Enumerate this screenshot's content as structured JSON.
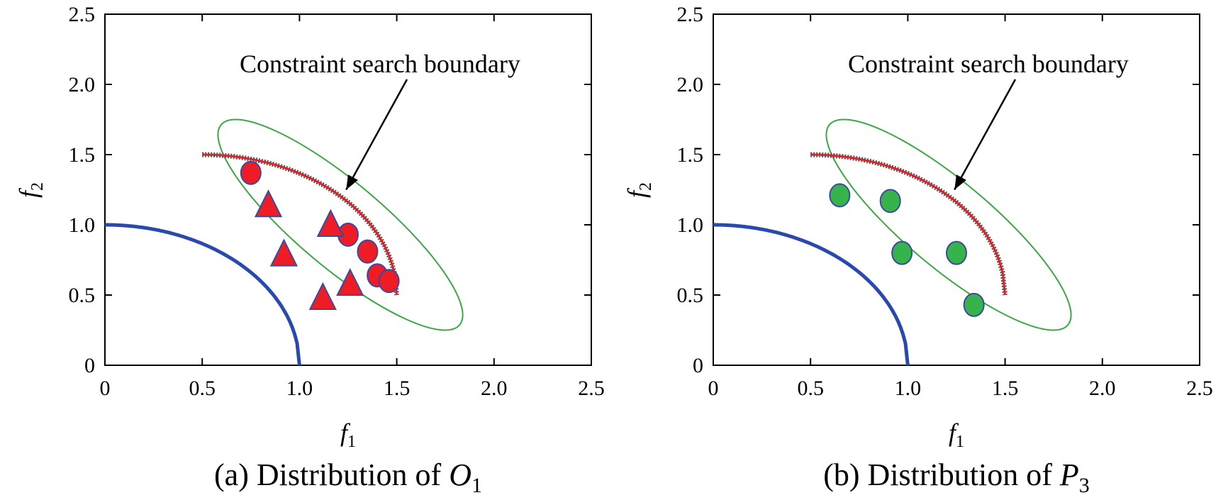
{
  "colors": {
    "true_front": "#2a49ae",
    "shifted_front": "#d9232a",
    "ellipse": "#3aa843",
    "o1_marker": "#ee1c25",
    "p3_marker": "#36b34a",
    "marker_edge": "#3a4aa0"
  },
  "chart_data": [
    {
      "type": "scatter",
      "caption": {
        "prefix": "(a) Distribution of ",
        "symbol": "O",
        "subscript": "1"
      },
      "xlabel": {
        "symbol": "f",
        "subscript": "1"
      },
      "ylabel": {
        "symbol": "f",
        "subscript": "2"
      },
      "xlim": [
        0,
        2.5
      ],
      "ylim": [
        0,
        2.5
      ],
      "xticks": [
        "0",
        "0.5",
        "1.0",
        "1.5",
        "2.0",
        "2.5"
      ],
      "yticks": [
        "0",
        "0.5",
        "1.0",
        "1.5",
        "2.0",
        "2.5"
      ],
      "annotation": {
        "text": "Constraint search boundary",
        "arrow_to": [
          1.24,
          1.25
        ]
      },
      "ellipse": {
        "center": [
          1.21,
          1.0
        ],
        "semi_axes": [
          0.8,
          0.22
        ],
        "angle_deg": -40
      },
      "series": [
        {
          "kind": "curve",
          "shape": "quarter-circle",
          "center": [
            0,
            0
          ],
          "radius": 1.0,
          "x_range": [
            0,
            1.0
          ]
        },
        {
          "kind": "curve",
          "shape": "shifted-front",
          "x_range": [
            0.5,
            1.5
          ],
          "y_range": [
            1.5,
            0.5
          ]
        },
        {
          "kind": "points",
          "marker": "circle",
          "x": [
            0.75,
            1.25,
            1.35,
            1.4,
            1.46
          ],
          "y": [
            1.37,
            0.93,
            0.81,
            0.64,
            0.6
          ]
        },
        {
          "kind": "points",
          "marker": "triangle",
          "x": [
            0.84,
            1.16,
            0.92,
            1.26,
            1.12
          ],
          "y": [
            1.14,
            1.0,
            0.79,
            0.58,
            0.48
          ]
        }
      ]
    },
    {
      "type": "scatter",
      "caption": {
        "prefix": "(b) Distribution of ",
        "symbol": "P",
        "subscript": "3"
      },
      "xlabel": {
        "symbol": "f",
        "subscript": "1"
      },
      "ylabel": {
        "symbol": "f",
        "subscript": "2"
      },
      "xlim": [
        0,
        2.5
      ],
      "ylim": [
        0,
        2.5
      ],
      "xticks": [
        "0",
        "0.5",
        "1.0",
        "1.5",
        "2.0",
        "2.5"
      ],
      "yticks": [
        "0",
        "0.5",
        "1.0",
        "1.5",
        "2.0",
        "2.5"
      ],
      "annotation": {
        "text": "Constraint search boundary",
        "arrow_to": [
          1.24,
          1.25
        ]
      },
      "ellipse": {
        "center": [
          1.21,
          1.0
        ],
        "semi_axes": [
          0.8,
          0.22
        ],
        "angle_deg": -40
      },
      "series": [
        {
          "kind": "curve",
          "shape": "quarter-circle",
          "center": [
            0,
            0
          ],
          "radius": 1.0,
          "x_range": [
            0,
            1.0
          ]
        },
        {
          "kind": "curve",
          "shape": "shifted-front",
          "x_range": [
            0.5,
            1.5
          ],
          "y_range": [
            1.5,
            0.5
          ]
        },
        {
          "kind": "points",
          "marker": "circle",
          "x": [
            0.65,
            0.91,
            0.97,
            1.25,
            1.34
          ],
          "y": [
            1.21,
            1.17,
            0.8,
            0.8,
            0.43
          ]
        }
      ]
    }
  ]
}
